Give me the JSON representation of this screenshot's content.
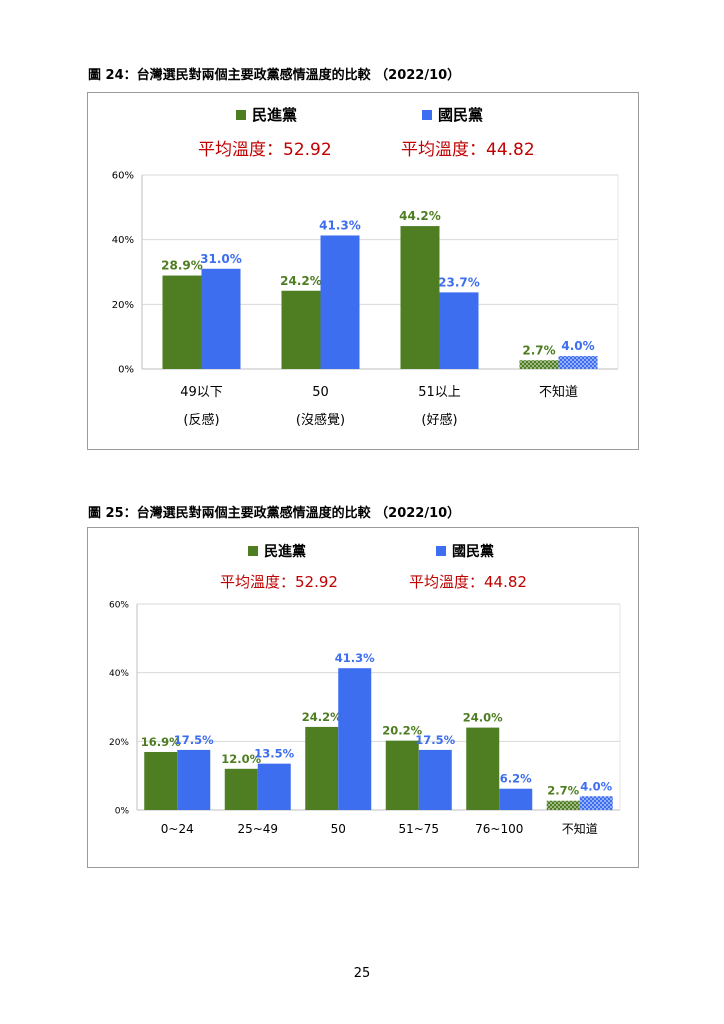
{
  "figures": [
    {
      "caption": "圖 24：台灣選民對兩個主要政黨感情溫度的比較 （2022/10）",
      "legend": {
        "dpp": "民進黨",
        "kmt": "國民黨"
      },
      "averages": {
        "dpp": "平均溫度：52.92",
        "kmt": "平均溫度：44.82"
      }
    },
    {
      "caption": "圖 25：台灣選民對兩個主要政黨感情溫度的比較 （2022/10）",
      "legend": {
        "dpp": "民進黨",
        "kmt": "國民黨"
      },
      "averages": {
        "dpp": "平均溫度：52.92",
        "kmt": "平均溫度：44.82"
      }
    }
  ],
  "colors": {
    "dpp": "#4e7d22",
    "kmt": "#3e6ef0",
    "average_text": "#c00000",
    "grid": "#d9d9d9"
  },
  "chart_data": [
    {
      "type": "bar",
      "categories": [
        "49以下",
        "50",
        "51以上",
        "不知道"
      ],
      "sublabels": [
        "(反感)",
        "(沒感覺)",
        "(好感)",
        ""
      ],
      "series": [
        {
          "name": "民進黨",
          "values": [
            28.9,
            24.2,
            44.2,
            2.7
          ],
          "labels": [
            "28.9%",
            "24.2%",
            "44.2%",
            "2.7%"
          ]
        },
        {
          "name": "國民黨",
          "values": [
            31.0,
            41.3,
            23.7,
            4.0
          ],
          "labels": [
            "31.0%",
            "41.3%",
            "23.7%",
            "4.0%"
          ]
        }
      ],
      "yticks": [
        "0%",
        "20%",
        "40%",
        "60%"
      ],
      "ylim": [
        0,
        60
      ],
      "grid": true,
      "legend_position": "top-center",
      "hatched_category": "不知道"
    },
    {
      "type": "bar",
      "categories": [
        "0~24",
        "25~49",
        "50",
        "51~75",
        "76~100",
        "不知道"
      ],
      "sublabels": [
        "",
        "",
        "",
        "",
        "",
        ""
      ],
      "series": [
        {
          "name": "民進黨",
          "values": [
            16.9,
            12.0,
            24.2,
            20.2,
            24.0,
            2.7
          ],
          "labels": [
            "16.9%",
            "12.0%",
            "24.2%",
            "20.2%",
            "24.0%",
            "2.7%"
          ]
        },
        {
          "name": "國民黨",
          "values": [
            17.5,
            13.5,
            41.3,
            17.5,
            6.2,
            4.0
          ],
          "labels": [
            "17.5%",
            "13.5%",
            "41.3%",
            "17.5%",
            "6.2%",
            "4.0%"
          ]
        }
      ],
      "yticks": [
        "0%",
        "20%",
        "40%",
        "60%"
      ],
      "ylim": [
        0,
        60
      ],
      "grid": true,
      "legend_position": "top-center",
      "hatched_category": "不知道"
    }
  ],
  "page_number": "25"
}
